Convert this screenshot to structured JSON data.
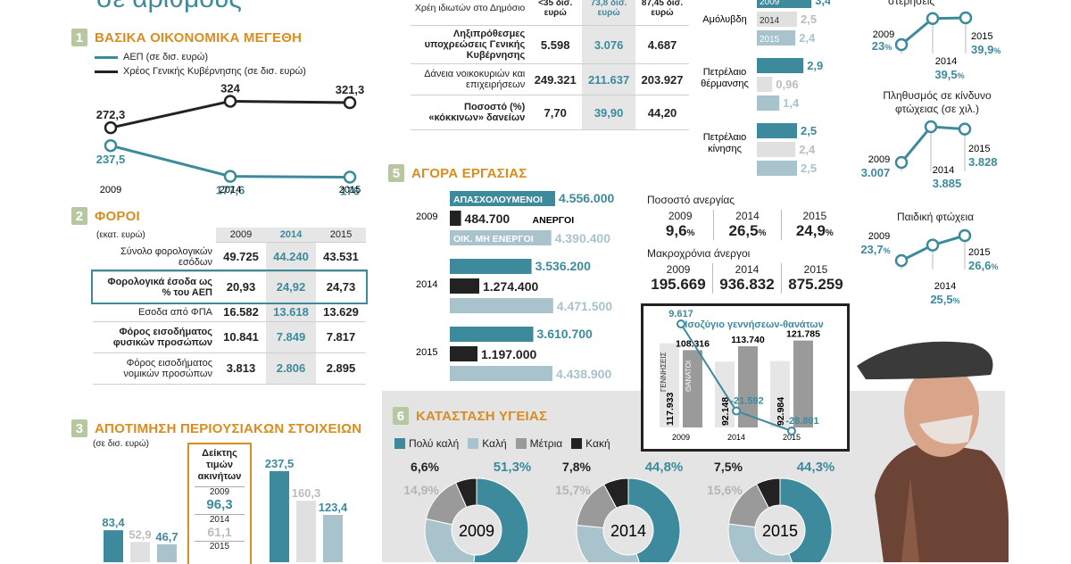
{
  "header_partial": "σε αριθμούς",
  "section1": {
    "num": "1",
    "title": "ΒΑΣΙΚΑ ΟΙΚΟΝΟΜΙΚΑ ΜΕΓΕΘΗ",
    "legend_gdp": "ΑΕΠ (σε δισ. ευρώ)",
    "legend_debt": "Χρέος Γενικής Κυβέρνησης (σε δισ. ευρώ)",
    "colors": {
      "gdp": "#3c8a9c",
      "debt": "#222222"
    }
  },
  "section2": {
    "num": "2",
    "title": "ΦΟΡΟΙ",
    "unit": "(εκατ. ευρώ)",
    "years": [
      "2009",
      "2014",
      "2015"
    ],
    "rows": [
      {
        "label": "Σύνολο φορολογικών εσόδων",
        "values": [
          "49.725",
          "44.240",
          "43.531"
        ]
      },
      {
        "label": "Φορολογικά έσοδα ως % του ΑΕΠ",
        "values": [
          "20,93",
          "24,92",
          "24,73"
        ]
      },
      {
        "label": "Εσοδα από ΦΠΑ",
        "values": [
          "16.582",
          "13.618",
          "13.629"
        ]
      },
      {
        "label": "Φόρος εισοδήματος φυσικών προσώπων",
        "values": [
          "10.841",
          "7.849",
          "7.817"
        ]
      },
      {
        "label": "Φόρος εισοδήματος νομικών προσώπων",
        "values": [
          "3.813",
          "2.806",
          "2.895"
        ]
      }
    ]
  },
  "section3": {
    "num": "3",
    "title": "ΑΠΟΤΙΜΗΣΗ ΠΕΡΙΟΥΣΙΑΚΩΝ ΣΤΟΙΧΕΙΩΝ",
    "unit": "(σε δισ. ευρώ)",
    "index_title": "Δείκτης τιμών ακινήτων",
    "index": [
      {
        "year": "2009",
        "value": "96,3"
      },
      {
        "year": "2014",
        "value": "61,1"
      },
      {
        "year": "2015",
        "value": ""
      }
    ]
  },
  "loans_table": {
    "col_head_partial": "Χρέη ιδιωτών στο Δημόσιο",
    "col_heads": [
      "<35 δισ. ευρώ",
      "73,8 δισ. ευρώ",
      "87,45 δισ. ευρώ"
    ],
    "rows": [
      {
        "label": "Ληξιπρόθεσμες υποχρεώσεις Γενικής Κυβέρνησης",
        "values": [
          "5.598",
          "3.076",
          "4.687"
        ]
      },
      {
        "label": "Δάνεια νοικοκυριών και επιχειρήσεων",
        "values": [
          "249.321",
          "211.637",
          "203.927"
        ]
      },
      {
        "label": "Ποσοστό (%) «κόκκινων» δανείων",
        "values": [
          "7,70",
          "39,90",
          "44,20"
        ]
      }
    ]
  },
  "fuel": {
    "groups": [
      {
        "label": "Αμόλυβδη",
        "bars": [
          {
            "year": "2009",
            "value": "3,4"
          },
          {
            "year": "2014",
            "value": "2,5"
          },
          {
            "year": "2015",
            "value": "2,4"
          }
        ]
      },
      {
        "label": "Πετρέλαιο θέρμανσης",
        "bars": [
          {
            "year": "",
            "value": "2,9"
          },
          {
            "year": "",
            "value": "0,96"
          },
          {
            "year": "",
            "value": "1,4"
          }
        ]
      },
      {
        "label": "Πετρέλαιο κίνησης",
        "bars": [
          {
            "year": "",
            "value": "2,5"
          },
          {
            "year": "",
            "value": "2,4"
          },
          {
            "year": "",
            "value": "2,5"
          }
        ]
      }
    ]
  },
  "section5": {
    "num": "5",
    "title": "ΑΓΟΡΑ ΕΡΓΑΣΙΑΣ",
    "labels": {
      "employed": "ΑΠΑΣΧΟΛΟΥΜΕΝΟΙ",
      "unemployed": "ΑΝΕΡΓΟΙ",
      "inactive": "ΟΙΚ. ΜΗ ΕΝΕΡΓΟΙ"
    },
    "years": [
      {
        "year": "2009",
        "employed": "4.556.000",
        "unemployed": "484.700",
        "inactive": "4.390.400"
      },
      {
        "year": "2014",
        "employed": "3.536.200",
        "unemployed": "1.274.400",
        "inactive": "4.471.500"
      },
      {
        "year": "2015",
        "employed": "3.610.700",
        "unemployed": "1.197.000",
        "inactive": "4.438.900"
      }
    ],
    "unemp_rate_title": "Ποσοστό ανεργίας",
    "unemp_rate": [
      {
        "year": "2009",
        "value": "9,6"
      },
      {
        "year": "2014",
        "value": "26,5"
      },
      {
        "year": "2015",
        "value": "24,9"
      }
    ],
    "longterm_title": "Μακροχρόνια άνεργοι",
    "longterm": [
      {
        "year": "2009",
        "value": "195.669"
      },
      {
        "year": "2014",
        "value": "936.832"
      },
      {
        "year": "2015",
        "value": "875.259"
      }
    ],
    "percent": "%"
  },
  "demo_box": {
    "title": "Ισοζύγιο γεννήσεων-θανάτων",
    "births_label": "ΓΕΝΝΗΣΕΙΣ",
    "deaths_label": "ΘΑΝΑΤΟΙ",
    "years": [
      "2009",
      "2014",
      "2015"
    ],
    "births": [
      "117.933",
      "92.148",
      "92.984"
    ],
    "deaths": [
      "108.316",
      "113.740",
      "121.785"
    ],
    "balance": [
      "9.617",
      "-21.592",
      "-28.801"
    ]
  },
  "section6": {
    "num": "6",
    "title": "ΚΑΤΑΣΤΑΣΗ ΥΓΕΙΑΣ",
    "legend": [
      "Πολύ καλή",
      "Καλή",
      "Μέτρια",
      "Κακή"
    ],
    "colors": [
      "#3c8a9c",
      "#a9c3cd",
      "#9a9a9a",
      "#222222"
    ]
  },
  "right_col": {
    "top_partial": "στερήσεις",
    "poverty_title": "Πληθυσμός σε κίνδυνο φτώχειας (σε χιλ.)",
    "child_title": "Παιδική φτώχεια"
  },
  "chart_data": [
    {
      "type": "line",
      "title": "ΒΑΣΙΚΑ ΟΙΚΟΝΟΜΙΚΑ ΜΕΓΕΘΗ",
      "categories": [
        "2009",
        "2014",
        "2015"
      ],
      "series": [
        {
          "name": "ΑΕΠ (σε δισ. ευρώ)",
          "values": [
            237.5,
            177.6,
            176
          ],
          "labels": [
            "237,5",
            "177,6",
            "176"
          ]
        },
        {
          "name": "Χρέος Γενικής Κυβέρνησης (σε δισ. ευρώ)",
          "values": [
            272.3,
            324,
            321.3
          ],
          "labels": [
            "272,3",
            "324",
            "321,3"
          ]
        }
      ]
    },
    {
      "type": "bar",
      "title": "ΑΠΟΤΙΜΗΣΗ ΠΕΡΙΟΥΣΙΑΚΩΝ ΣΤΟΙΧΕΙΩΝ",
      "groups": [
        {
          "values": [
            83.4,
            52.9,
            46.7
          ],
          "labels": [
            "83,4",
            "52,9",
            "46,7"
          ]
        },
        {
          "values": [
            237.5,
            160.3,
            123.4
          ],
          "labels": [
            "237,5",
            "160,3",
            "123,4"
          ]
        }
      ]
    },
    {
      "type": "line",
      "title": "στερήσεις",
      "categories": [
        "2009",
        "2014",
        "2015"
      ],
      "values": [
        23,
        39.5,
        39.9
      ],
      "labels": [
        "23",
        "39,5",
        "39,9"
      ],
      "unit": "%"
    },
    {
      "type": "line",
      "title": "Πληθυσμός σε κίνδυνο φτώχειας (σε χιλ.)",
      "categories": [
        "2009",
        "2014",
        "2015"
      ],
      "values": [
        3007,
        3885,
        3828
      ],
      "labels": [
        "3.007",
        "3.885",
        "3.828"
      ]
    },
    {
      "type": "line",
      "title": "Παιδική φτώχεια",
      "categories": [
        "2009",
        "2014",
        "2015"
      ],
      "values": [
        23.7,
        25.5,
        26.6
      ],
      "labels": [
        "23,7",
        "25,5",
        "26,6"
      ],
      "unit": "%"
    },
    {
      "type": "pie",
      "title": "ΚΑΤΑΣΤΑΣΗ ΥΓΕΙΑΣ",
      "categories": [
        "Πολύ καλή",
        "Καλή",
        "Μέτρια",
        "Κακή"
      ],
      "pies": [
        {
          "year": "2009",
          "values": [
            51.3,
            27.2,
            14.9,
            6.6
          ],
          "labels": [
            "51,3",
            "",
            "14,9",
            "6,6"
          ]
        },
        {
          "year": "2014",
          "values": [
            44.8,
            31.7,
            15.7,
            7.8
          ],
          "labels": [
            "44,8",
            "",
            "15,7",
            "7,8"
          ]
        },
        {
          "year": "2015",
          "values": [
            44.3,
            32.6,
            15.6,
            7.5
          ],
          "labels": [
            "44,3",
            "",
            "15,6",
            "7,5"
          ]
        }
      ]
    }
  ]
}
